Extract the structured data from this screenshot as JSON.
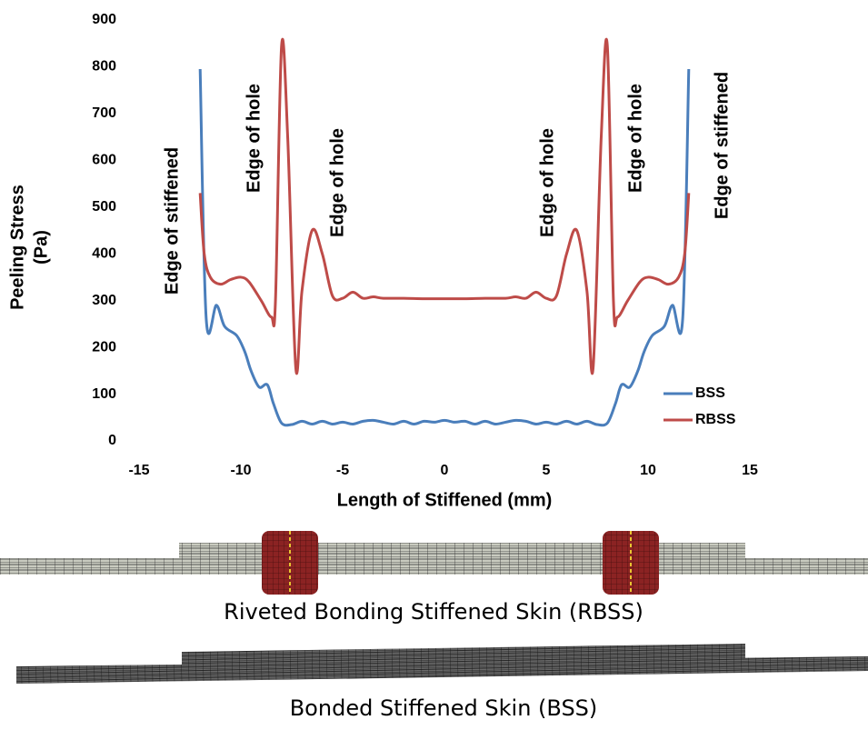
{
  "chart_data": {
    "type": "line",
    "x_label": "Length of Stiffened (mm)",
    "y_label": [
      "Peeling Stress",
      "(Pa)"
    ],
    "xlim": [
      -15,
      15
    ],
    "xticks": [
      -15,
      -10,
      -5,
      0,
      5,
      10,
      15
    ],
    "ylim": [
      0,
      900
    ],
    "yticks": [
      0,
      100,
      200,
      300,
      400,
      500,
      600,
      700,
      800,
      900
    ],
    "annotations": [
      "Edge of stiffened",
      "Edge of hole",
      "Edge of hole",
      "Edge of hole",
      "Edge of hole",
      "Edge of stiffened"
    ],
    "legend": "lower right",
    "series": [
      {
        "name": "BSS",
        "color": "#4a7ebb",
        "x": [
          -12,
          -11.7,
          -11.2,
          -10.8,
          -10.2,
          -9.8,
          -9.5,
          -9.1,
          -8.7,
          -8.4,
          -8,
          -7.5,
          -7,
          -6.5,
          -6,
          -5.5,
          -5,
          -4.5,
          -4,
          -3.5,
          -3,
          -2.5,
          -2,
          -1.5,
          -1,
          -0.5,
          0,
          0.5,
          1,
          1.5,
          2,
          2.5,
          3,
          3.5,
          4,
          4.5,
          5,
          5.5,
          6,
          6.5,
          7,
          7.5,
          8,
          8.4,
          8.7,
          9.1,
          9.5,
          9.8,
          10.2,
          10.8,
          11.2,
          11.7,
          12
        ],
        "values": [
          795,
          260,
          290,
          245,
          225,
          190,
          150,
          115,
          120,
          80,
          38,
          35,
          42,
          36,
          42,
          36,
          40,
          36,
          42,
          44,
          40,
          36,
          42,
          36,
          42,
          40,
          44,
          40,
          42,
          36,
          42,
          36,
          40,
          44,
          42,
          36,
          40,
          36,
          42,
          36,
          42,
          35,
          38,
          80,
          120,
          115,
          150,
          190,
          225,
          245,
          290,
          260,
          795
        ]
      },
      {
        "name": "RBSS",
        "color": "#be4b48",
        "x": [
          -12,
          -11.8,
          -11.5,
          -11,
          -10.5,
          -10,
          -9.6,
          -9,
          -8.5,
          -8.3,
          -8,
          -7.7,
          -7.3,
          -7,
          -6.5,
          -6,
          -5.5,
          -5,
          -4.5,
          -4,
          -3.5,
          -3,
          -2,
          -1,
          0,
          1,
          2,
          3,
          3.5,
          4,
          4.5,
          5,
          5.5,
          6,
          6.5,
          7,
          7.3,
          7.7,
          8,
          8.3,
          8.5,
          9,
          9.6,
          10,
          10.5,
          11,
          11.5,
          11.8,
          12
        ],
        "values": [
          530,
          400,
          350,
          335,
          345,
          350,
          340,
          300,
          265,
          300,
          845,
          650,
          155,
          320,
          450,
          400,
          310,
          305,
          318,
          305,
          308,
          305,
          305,
          304,
          304,
          304,
          305,
          305,
          308,
          305,
          318,
          305,
          310,
          400,
          450,
          320,
          155,
          650,
          845,
          300,
          265,
          300,
          340,
          350,
          345,
          335,
          350,
          400,
          530
        ]
      }
    ]
  },
  "panels": [
    {
      "caption": "Riveted Bonding Stiffened Skin (RBSS)"
    },
    {
      "caption": "Bonded Stiffened Skin (BSS)"
    }
  ]
}
